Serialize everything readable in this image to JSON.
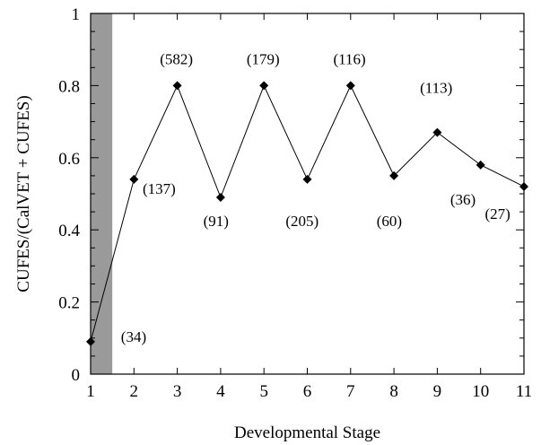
{
  "chart_data": {
    "type": "line",
    "title": "",
    "xlabel": "Developmental Stage",
    "ylabel": "CUFES/(CalVET + CUFES)",
    "xlim": [
      1,
      11
    ],
    "ylim": [
      0,
      1
    ],
    "x_ticks": [
      "1",
      "2",
      "3",
      "4",
      "5",
      "6",
      "7",
      "8",
      "9",
      "10",
      "11"
    ],
    "y_ticks": [
      "0",
      "0.2",
      "0.4",
      "0.6",
      "0.8",
      "1"
    ],
    "grid": false,
    "shaded_region": {
      "x_from": 1,
      "x_to": 1.5,
      "fill": "#9a9a9a"
    },
    "series": [
      {
        "x": [
          1,
          2,
          3,
          4,
          5,
          6,
          7,
          8,
          9,
          10,
          11
        ],
        "y": [
          0.09,
          0.54,
          0.8,
          0.49,
          0.8,
          0.54,
          0.8,
          0.55,
          0.67,
          0.58,
          0.52
        ],
        "marker": "diamond",
        "color": "#000000"
      }
    ],
    "annotations": [
      {
        "text": "(34)",
        "x": 1.7,
        "y": 0.09
      },
      {
        "text": "(137)",
        "x": 2.2,
        "y": 0.5
      },
      {
        "text": "(582)",
        "x": 2.6,
        "y": 0.86
      },
      {
        "text": "(91)",
        "x": 3.6,
        "y": 0.41
      },
      {
        "text": "(179)",
        "x": 4.6,
        "y": 0.86
      },
      {
        "text": "(205)",
        "x": 5.5,
        "y": 0.41
      },
      {
        "text": "(116)",
        "x": 6.6,
        "y": 0.86
      },
      {
        "text": "(60)",
        "x": 7.6,
        "y": 0.41
      },
      {
        "text": "(113)",
        "x": 8.6,
        "y": 0.78
      },
      {
        "text": "(36)",
        "x": 9.3,
        "y": 0.47
      },
      {
        "text": "(27)",
        "x": 10.1,
        "y": 0.43
      }
    ]
  }
}
